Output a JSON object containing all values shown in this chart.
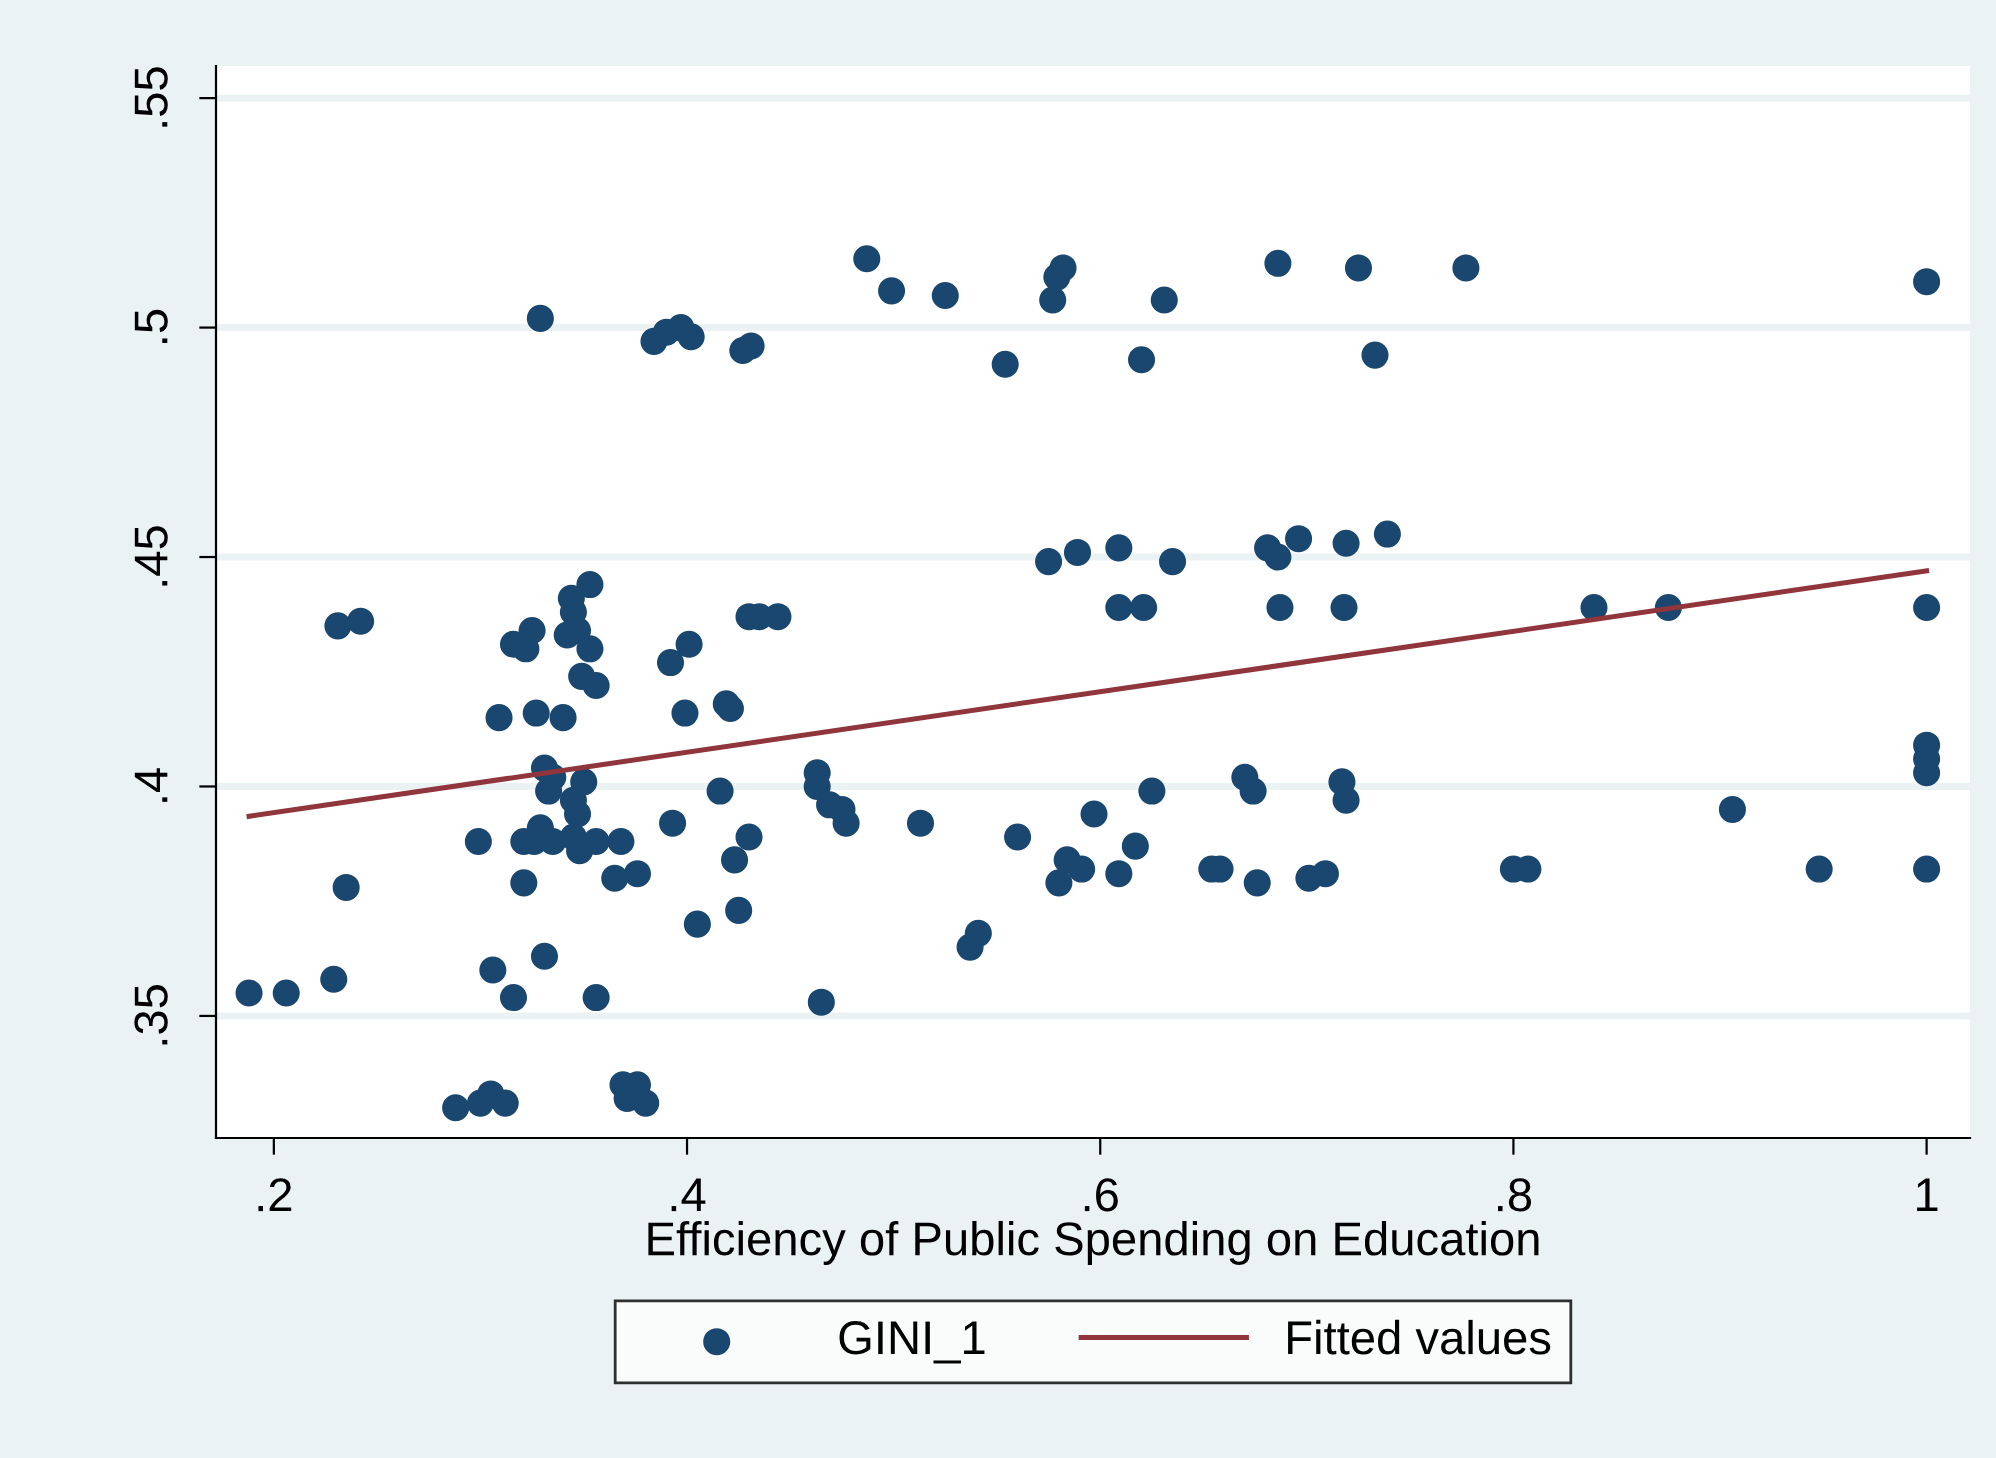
{
  "chart_data": {
    "type": "scatter",
    "xlabel": "Efficiency of Public Spending on Education",
    "xlim": [
      0.172,
      1.021
    ],
    "xticks": [
      {
        "value": 0.2,
        "label": ".2"
      },
      {
        "value": 0.4,
        "label": ".4"
      },
      {
        "value": 0.6,
        "label": ".6"
      },
      {
        "value": 0.8,
        "label": ".8"
      },
      {
        "value": 1,
        "label": "1"
      }
    ],
    "ylim": [
      0.3234,
      0.557
    ],
    "yticks": [
      {
        "value": 0.35,
        "label": ".35"
      },
      {
        "value": 0.4,
        "label": ".4"
      },
      {
        "value": 0.45,
        "label": ".45"
      },
      {
        "value": 0.5,
        "label": ".5"
      },
      {
        "value": 0.55,
        "label": ".55"
      }
    ],
    "grid": "y",
    "legend": "bottom",
    "series": [
      {
        "name": "GINI_1",
        "marker": "circle",
        "color": "#1a476f",
        "x": [
          0.329,
          0.384,
          0.39,
          0.397,
          0.402,
          0.427,
          0.431,
          0.231,
          0.242,
          0.316,
          0.325,
          0.322,
          0.344,
          0.353,
          0.345,
          0.347,
          0.342,
          0.353,
          0.349,
          0.356,
          0.309,
          0.327,
          0.34,
          0.392,
          0.401,
          0.399,
          0.419,
          0.421,
          0.43,
          0.435,
          0.444,
          0.331,
          0.335,
          0.333,
          0.35,
          0.345,
          0.347,
          0.329,
          0.299,
          0.321,
          0.326,
          0.335,
          0.348,
          0.345,
          0.356,
          0.368,
          0.393,
          0.416,
          0.43,
          0.423,
          0.235,
          0.321,
          0.365,
          0.376,
          0.405,
          0.425,
          0.188,
          0.206,
          0.229,
          0.306,
          0.316,
          0.331,
          0.356,
          0.288,
          0.3,
          0.305,
          0.312,
          0.369,
          0.376,
          0.371,
          0.38,
          0.487,
          0.499,
          0.525,
          0.577,
          0.579,
          0.582,
          0.631,
          0.686,
          0.725,
          0.554,
          0.62,
          0.733,
          0.575,
          0.589,
          0.609,
          0.635,
          0.681,
          0.686,
          0.696,
          0.719,
          0.739,
          0.609,
          0.621,
          0.687,
          0.718,
          0.463,
          0.463,
          0.469,
          0.475,
          0.477,
          0.513,
          0.56,
          0.465,
          0.537,
          0.541,
          0.625,
          0.597,
          0.617,
          0.584,
          0.591,
          0.58,
          0.609,
          0.654,
          0.658,
          0.676,
          0.701,
          0.709,
          0.67,
          0.674,
          0.717,
          0.719,
          0.777,
          1.0,
          0.839,
          0.875,
          1.0,
          1.0,
          1.0,
          1.0,
          0.906,
          0.8,
          0.807,
          0.948,
          1.0
        ],
        "values": [
          0.502,
          0.497,
          0.499,
          0.5,
          0.498,
          0.495,
          0.496,
          0.435,
          0.436,
          0.431,
          0.434,
          0.43,
          0.441,
          0.444,
          0.438,
          0.434,
          0.433,
          0.43,
          0.424,
          0.422,
          0.415,
          0.416,
          0.415,
          0.427,
          0.431,
          0.416,
          0.418,
          0.417,
          0.437,
          0.437,
          0.437,
          0.404,
          0.402,
          0.399,
          0.401,
          0.397,
          0.394,
          0.391,
          0.388,
          0.388,
          0.388,
          0.388,
          0.386,
          0.389,
          0.388,
          0.388,
          0.392,
          0.399,
          0.389,
          0.384,
          0.378,
          0.379,
          0.38,
          0.381,
          0.37,
          0.373,
          0.355,
          0.355,
          0.358,
          0.36,
          0.354,
          0.363,
          0.354,
          0.33,
          0.331,
          0.333,
          0.331,
          0.335,
          0.335,
          0.332,
          0.331,
          0.515,
          0.508,
          0.507,
          0.506,
          0.511,
          0.513,
          0.506,
          0.514,
          0.513,
          0.492,
          0.493,
          0.494,
          0.449,
          0.451,
          0.452,
          0.449,
          0.452,
          0.45,
          0.454,
          0.453,
          0.455,
          0.439,
          0.439,
          0.439,
          0.439,
          0.403,
          0.4,
          0.396,
          0.395,
          0.392,
          0.392,
          0.389,
          0.353,
          0.365,
          0.368,
          0.399,
          0.394,
          0.387,
          0.384,
          0.382,
          0.379,
          0.381,
          0.382,
          0.382,
          0.379,
          0.38,
          0.381,
          0.402,
          0.399,
          0.401,
          0.397,
          0.513,
          0.51,
          0.439,
          0.439,
          0.439,
          0.409,
          0.406,
          0.403,
          0.395,
          0.382,
          0.382,
          0.382,
          0.382
        ]
      },
      {
        "name": "Fitted values",
        "type": "line",
        "marker": "none",
        "color": "#90353b",
        "x": [
          0.188,
          1.0
        ],
        "values": [
          0.3935,
          0.447
        ]
      }
    ]
  }
}
